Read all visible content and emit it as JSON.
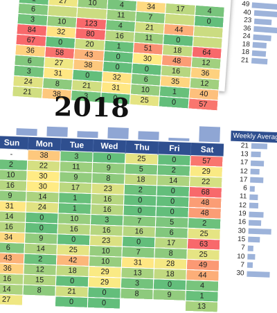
{
  "top_grid": {
    "rows": [
      [
        "",
        "1",
        "27",
        "10",
        "4",
        "34",
        "17"
      ],
      [
        "",
        "6",
        "",
        "",
        "11",
        "7",
        ""
      ],
      [
        "",
        "3",
        "10",
        "123",
        "4",
        "21",
        "44"
      ],
      [
        "",
        "84",
        "32",
        "80",
        "16",
        "11",
        "0"
      ],
      [
        "",
        "67",
        "0",
        "20",
        "1",
        "51",
        "18"
      ],
      [
        "",
        "36",
        "58",
        "43",
        "0",
        "30",
        "48"
      ],
      [
        "",
        "6",
        "27",
        "38",
        "0",
        "0",
        "16"
      ],
      [
        "",
        "3",
        "31",
        "0",
        "32",
        "6",
        "35"
      ],
      [
        "",
        "24",
        "8",
        "21",
        "31",
        "10",
        "1"
      ],
      [
        "",
        "21",
        "38",
        "3",
        "0",
        "25",
        "0"
      ]
    ],
    "cols": [
      "",
      "",
      "",
      "",
      "",
      "",
      "",
      ""
    ],
    "extra": [
      "4",
      "0",
      "",
      "",
      "64",
      "12",
      "36",
      "12",
      "40",
      "57"
    ]
  },
  "top_weekly": [
    "49",
    "40",
    "23",
    "36",
    "24",
    "18",
    "18",
    "21"
  ],
  "year_title": "2018",
  "main": {
    "headers": [
      "Sun",
      "Mon",
      "Tue",
      "Wed",
      "Thu",
      "Fri",
      "Sat"
    ],
    "rows": [
      [
        "-",
        "38",
        "3",
        "0",
        "25",
        "0",
        "57"
      ],
      [
        "2",
        "22",
        "11",
        "9",
        "5",
        "2",
        "29"
      ],
      [
        "10",
        "30",
        "9",
        "8",
        "18",
        "14",
        "22"
      ],
      [
        "16",
        "30",
        "17",
        "23",
        "2",
        "0",
        "68"
      ],
      [
        "9",
        "14",
        "1",
        "16",
        "0",
        "0",
        "48"
      ],
      [
        "31",
        "24",
        "1",
        "16",
        "0",
        "0",
        "48"
      ],
      [
        "14",
        "0",
        "10",
        "3",
        "7",
        "5",
        "2"
      ],
      [
        "16",
        "0",
        "16",
        "16",
        "16",
        "6",
        "25"
      ],
      [
        "34",
        "9",
        "0",
        "23",
        "0",
        "17",
        "63"
      ],
      [
        "6",
        "14",
        "25",
        "10",
        "7",
        "8",
        "25"
      ],
      [
        "43",
        "2",
        "42",
        "10",
        "31",
        "28",
        "49"
      ],
      [
        "36",
        "12",
        "18",
        "29",
        "13",
        "18",
        "44"
      ],
      [
        "16",
        "15",
        "0",
        "29",
        "3",
        "0",
        "4"
      ],
      [
        "14",
        "8",
        "21",
        "0",
        "8",
        "9",
        "1"
      ],
      [
        "27",
        "",
        "0",
        "0",
        "",
        "",
        "13"
      ]
    ]
  },
  "weekly_title": "Weekly Average",
  "weekly": [
    "21",
    "13",
    "17",
    "12",
    "17",
    "6",
    "11",
    "12",
    "19",
    "16",
    "30",
    "15",
    "7",
    "10",
    "7",
    "30"
  ],
  "colors": {
    "header": "#2f4f8f",
    "green": "#63be7b",
    "yellow": "#ffeb84",
    "red": "#f8696b",
    "bar": "#9db3da"
  }
}
